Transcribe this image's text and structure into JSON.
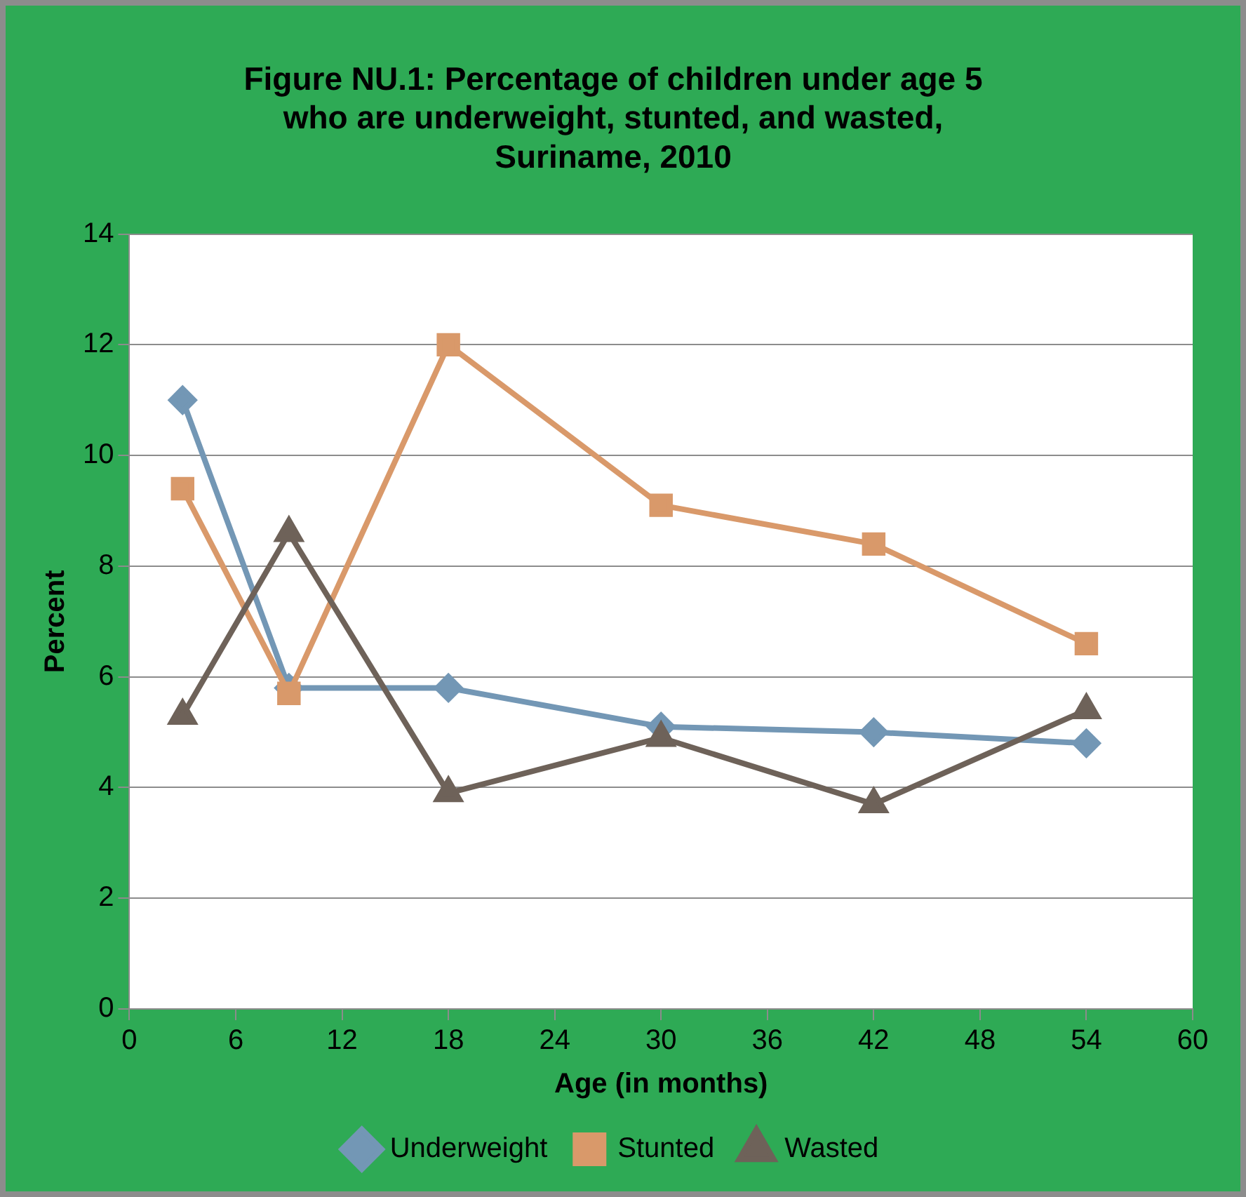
{
  "chart_data": {
    "type": "line",
    "title": "Figure NU.1: Percentage of children under age 5 who are underweight, stunted, and wasted, Suriname, 2010",
    "xlabel": "Age (in months)",
    "ylabel": "Percent",
    "x": [
      3,
      9,
      18,
      30,
      42,
      54
    ],
    "series": [
      {
        "name": "Underweight",
        "color": "#7397b5",
        "marker": "diamond",
        "values": [
          11.0,
          5.8,
          5.8,
          5.1,
          5.0,
          4.8
        ]
      },
      {
        "name": "Stunted",
        "color": "#d9996a",
        "marker": "square",
        "values": [
          9.4,
          5.7,
          12.0,
          9.1,
          8.4,
          6.6
        ]
      },
      {
        "name": "Wasted",
        "color": "#6e6259",
        "marker": "triangle",
        "values": [
          5.3,
          8.6,
          3.9,
          4.9,
          3.7,
          5.4
        ]
      }
    ],
    "xlim": [
      0,
      60
    ],
    "xticks": [
      0,
      6,
      12,
      18,
      24,
      30,
      36,
      42,
      48,
      54,
      60
    ],
    "ylim": [
      0,
      14
    ],
    "yticks": [
      0,
      2,
      4,
      6,
      8,
      10,
      12,
      14
    ],
    "grid": "y",
    "legend": "bottom",
    "line_style": "solid"
  }
}
